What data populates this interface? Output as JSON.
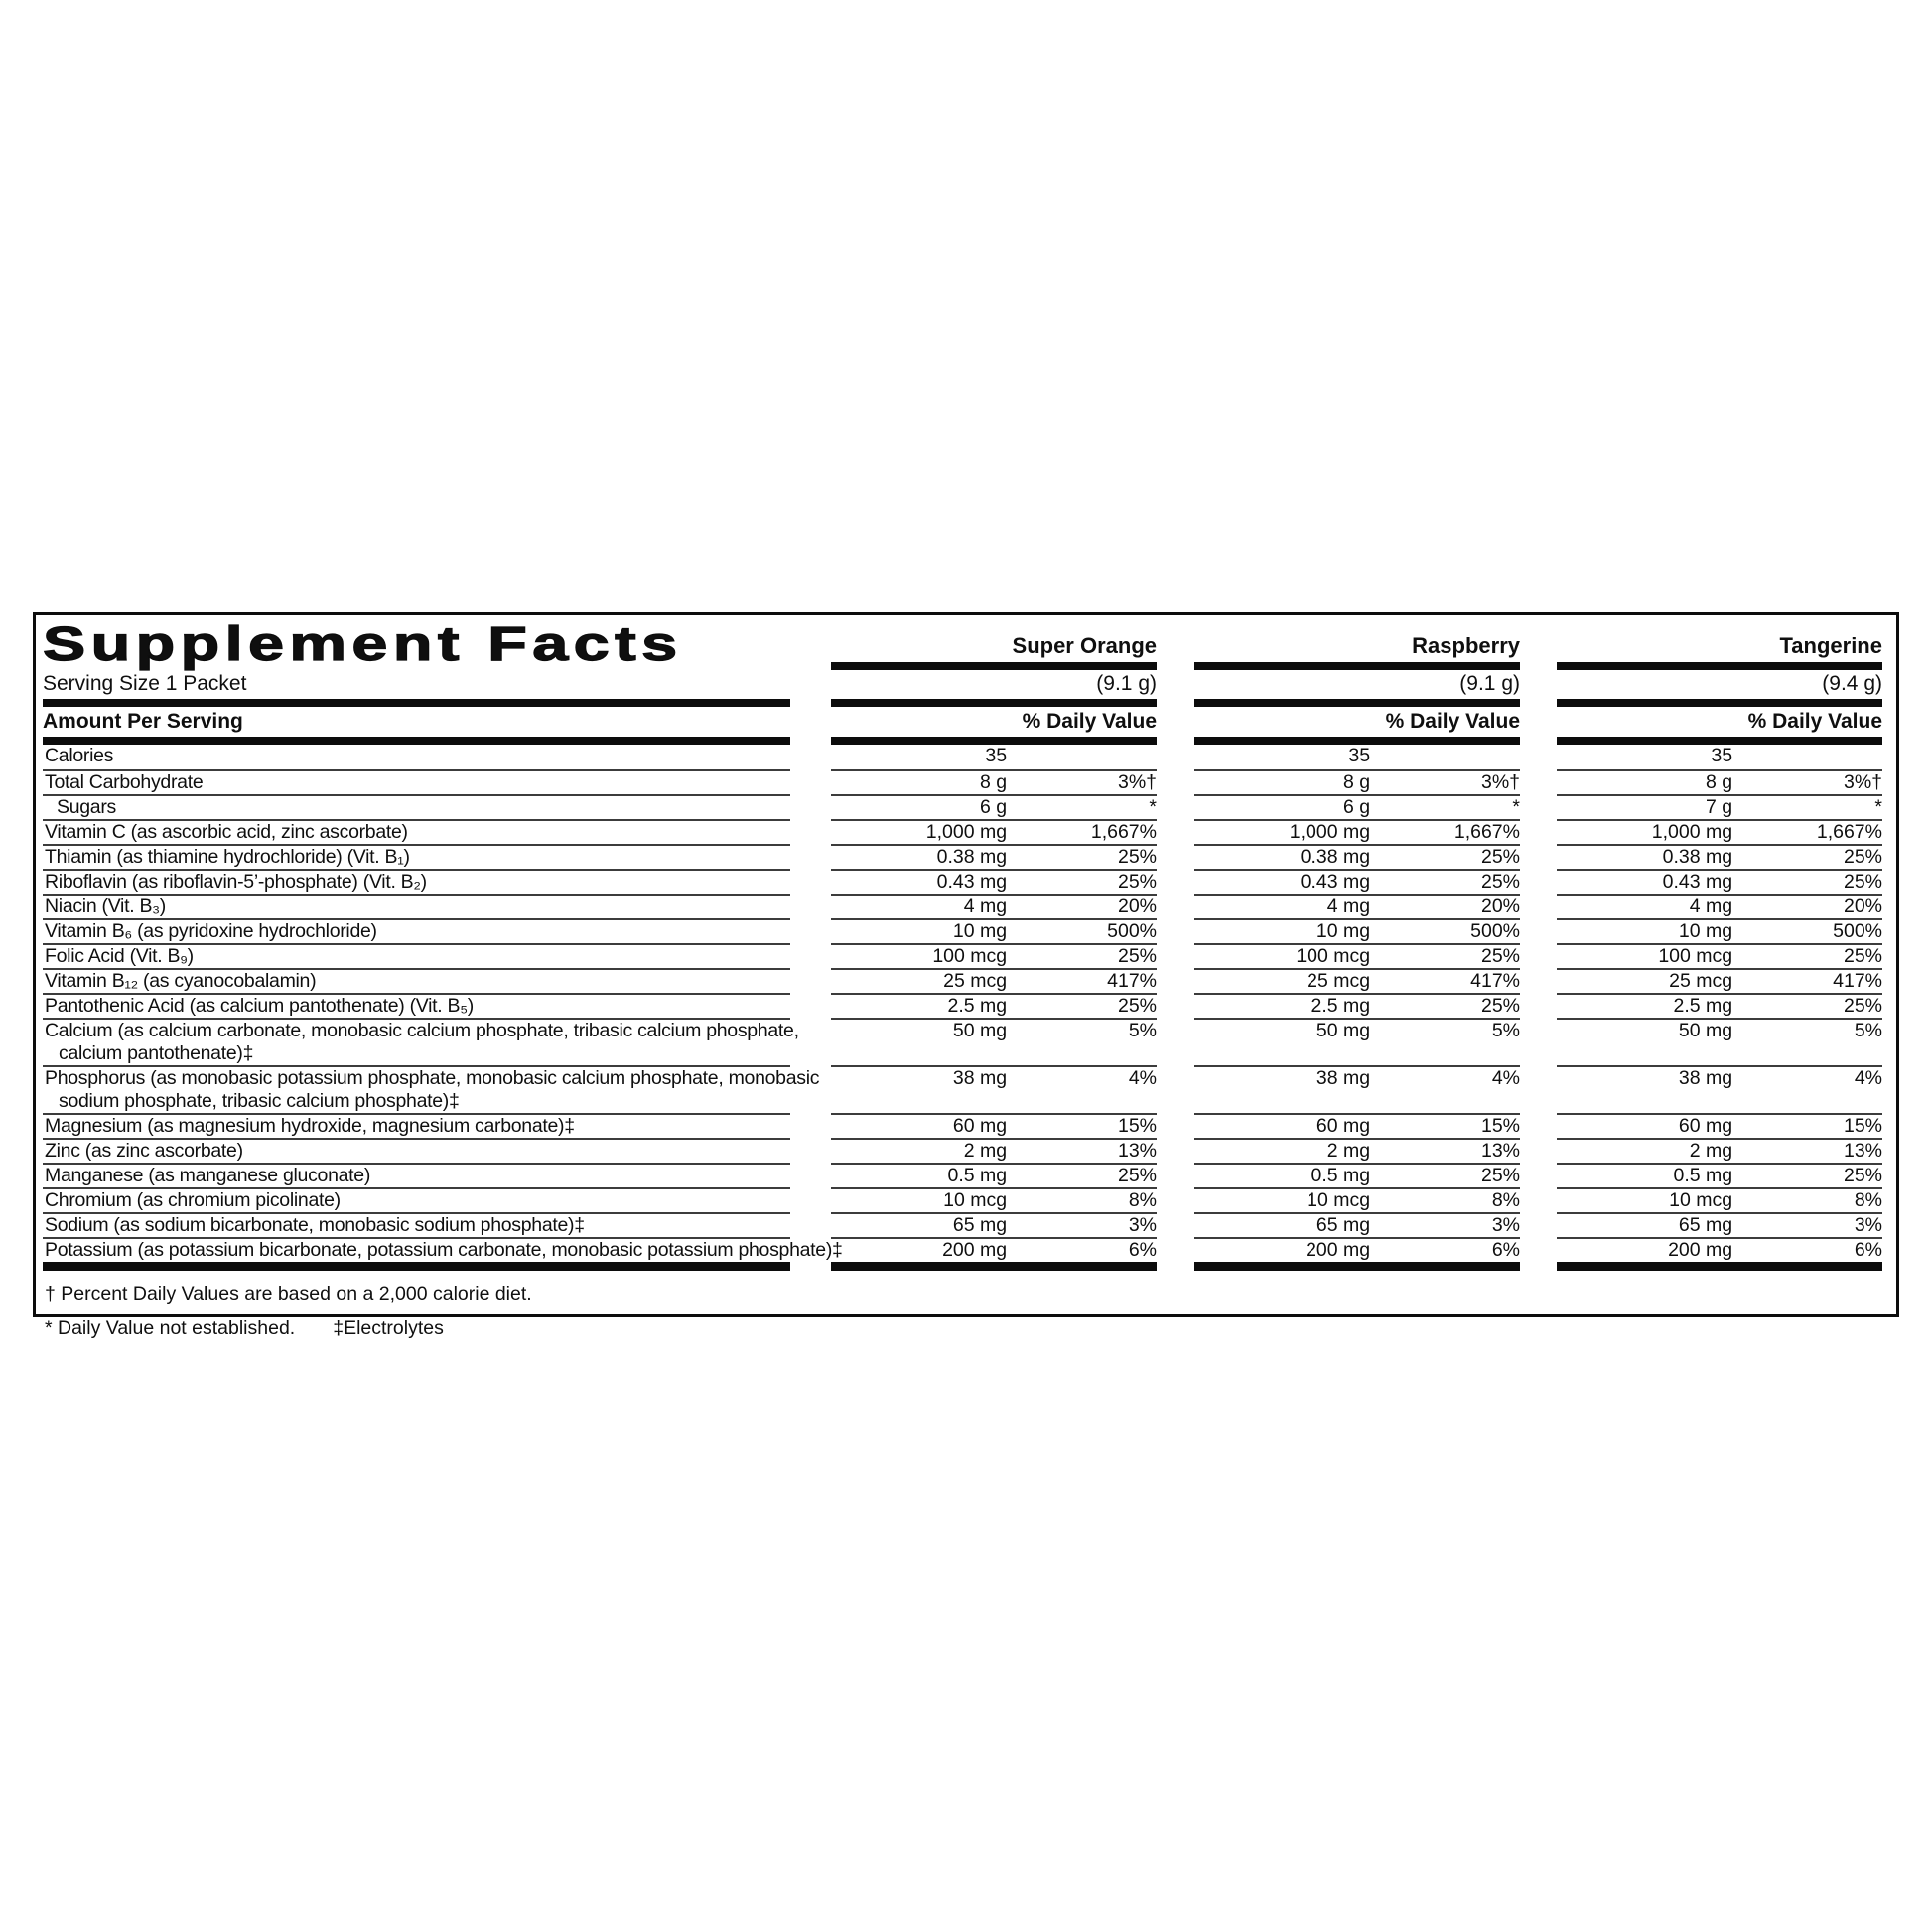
{
  "label": {
    "title": "Supplement Facts",
    "serving_size": "Serving Size 1 Packet",
    "amount_per_serving": "Amount Per Serving",
    "daily_value_header": "% Daily Value"
  },
  "flavors": [
    {
      "name": "Super Orange",
      "weight": "(9.1 g)"
    },
    {
      "name": "Raspberry",
      "weight": "(9.1 g)"
    },
    {
      "name": "Tangerine",
      "weight": "(9.4 g)"
    }
  ],
  "rows": [
    {
      "name": "Calories",
      "amounts": [
        "35",
        "35",
        "35"
      ],
      "dvs": [
        "",
        "",
        ""
      ]
    },
    {
      "name": "Total Carbohydrate",
      "amounts": [
        "8 g",
        "8 g",
        "8 g"
      ],
      "dvs": [
        "3%†",
        "3%†",
        "3%†"
      ]
    },
    {
      "name": "Sugars",
      "indent": true,
      "amounts": [
        "6 g",
        "6 g",
        "7 g"
      ],
      "dvs": [
        "*",
        "*",
        "*"
      ]
    },
    {
      "name": "Vitamin C (as ascorbic acid, zinc ascorbate)",
      "amounts": [
        "1,000 mg",
        "1,000 mg",
        "1,000 mg"
      ],
      "dvs": [
        "1,667%",
        "1,667%",
        "1,667%"
      ]
    },
    {
      "name": "Thiamin (as thiamine hydrochloride) (Vit. B₁)",
      "amounts": [
        "0.38 mg",
        "0.38 mg",
        "0.38 mg"
      ],
      "dvs": [
        "25%",
        "25%",
        "25%"
      ]
    },
    {
      "name": "Riboflavin (as riboflavin-5’-phosphate) (Vit. B₂)",
      "amounts": [
        "0.43 mg",
        "0.43 mg",
        "0.43 mg"
      ],
      "dvs": [
        "25%",
        "25%",
        "25%"
      ]
    },
    {
      "name": "Niacin (Vit. B₃)",
      "amounts": [
        "4 mg",
        "4 mg",
        "4 mg"
      ],
      "dvs": [
        "20%",
        "20%",
        "20%"
      ]
    },
    {
      "name": "Vitamin B₆ (as pyridoxine hydrochloride)",
      "amounts": [
        "10 mg",
        "10 mg",
        "10 mg"
      ],
      "dvs": [
        "500%",
        "500%",
        "500%"
      ]
    },
    {
      "name": "Folic Acid (Vit. B₉)",
      "amounts": [
        "100 mcg",
        "100 mcg",
        "100 mcg"
      ],
      "dvs": [
        "25%",
        "25%",
        "25%"
      ]
    },
    {
      "name": "Vitamin B₁₂ (as cyanocobalamin)",
      "amounts": [
        "25 mcg",
        "25 mcg",
        "25 mcg"
      ],
      "dvs": [
        "417%",
        "417%",
        "417%"
      ]
    },
    {
      "name": "Pantothenic Acid (as calcium pantothenate) (Vit. B₅)",
      "amounts": [
        "2.5 mg",
        "2.5 mg",
        "2.5 mg"
      ],
      "dvs": [
        "25%",
        "25%",
        "25%"
      ]
    },
    {
      "name_lines": [
        "Calcium (as calcium carbonate, monobasic calcium phosphate, tribasic calcium phosphate,",
        "calcium pantothenate)‡"
      ],
      "amounts": [
        "50 mg",
        "50 mg",
        "50 mg"
      ],
      "dvs": [
        "5%",
        "5%",
        "5%"
      ]
    },
    {
      "name_lines": [
        "Phosphorus (as monobasic potassium phosphate, monobasic calcium phosphate, monobasic",
        "sodium phosphate, tribasic calcium phosphate)‡"
      ],
      "amounts": [
        "38 mg",
        "38 mg",
        "38 mg"
      ],
      "dvs": [
        "4%",
        "4%",
        "4%"
      ]
    },
    {
      "name": "Magnesium (as magnesium hydroxide, magnesium carbonate)‡",
      "amounts": [
        "60 mg",
        "60 mg",
        "60 mg"
      ],
      "dvs": [
        "15%",
        "15%",
        "15%"
      ]
    },
    {
      "name": "Zinc (as zinc ascorbate)",
      "amounts": [
        "2 mg",
        "2 mg",
        "2 mg"
      ],
      "dvs": [
        "13%",
        "13%",
        "13%"
      ]
    },
    {
      "name": "Manganese (as manganese gluconate)",
      "amounts": [
        "0.5 mg",
        "0.5 mg",
        "0.5 mg"
      ],
      "dvs": [
        "25%",
        "25%",
        "25%"
      ]
    },
    {
      "name": "Chromium (as chromium picolinate)",
      "amounts": [
        "10 mcg",
        "10 mcg",
        "10 mcg"
      ],
      "dvs": [
        "8%",
        "8%",
        "8%"
      ]
    },
    {
      "name": "Sodium (as sodium bicarbonate, monobasic sodium phosphate)‡",
      "amounts": [
        "65 mg",
        "65 mg",
        "65 mg"
      ],
      "dvs": [
        "3%",
        "3%",
        "3%"
      ]
    },
    {
      "name": "Potassium (as potassium bicarbonate, potassium carbonate, monobasic potassium phosphate)‡",
      "amounts": [
        "200 mg",
        "200 mg",
        "200 mg"
      ],
      "dvs": [
        "6%",
        "6%",
        "6%"
      ]
    }
  ],
  "footnotes": {
    "daily_values": "† Percent Daily Values are based on a 2,000 calorie diet.",
    "not_established": "* Daily Value not established.",
    "electrolytes": "‡Electrolytes"
  },
  "colors": {
    "text": "#0f0f0f",
    "bar": "#0c0c0c",
    "hairline": "#3c3c3c",
    "background": "#ffffff"
  }
}
